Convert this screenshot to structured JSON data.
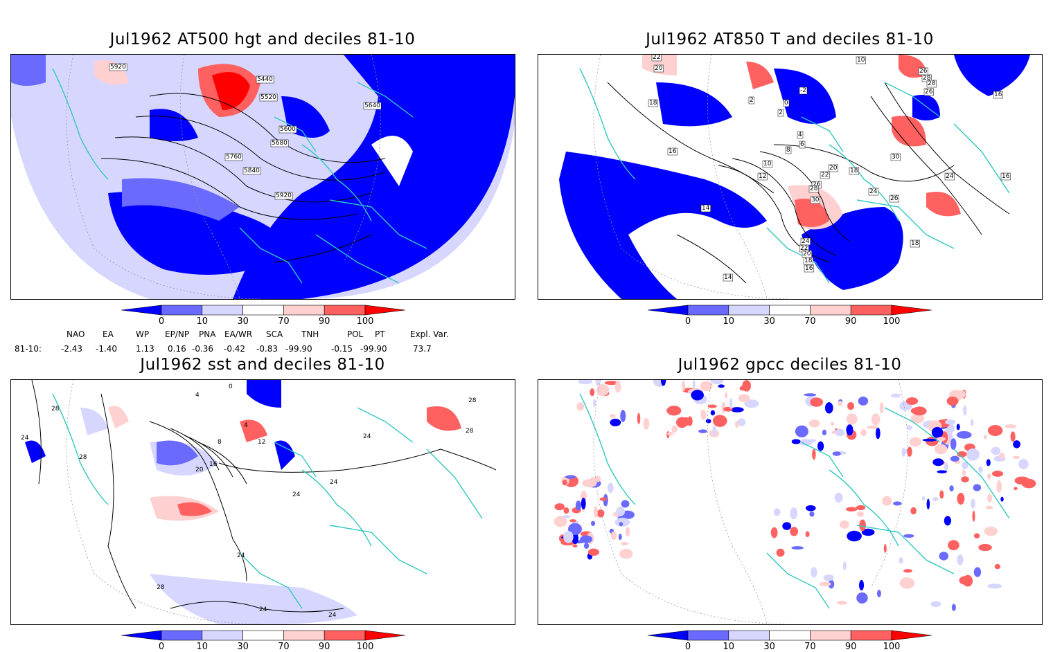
{
  "panels": [
    {
      "title": "Jul1962 AT500 hgt and deciles 81-10"
    },
    {
      "title": "Jul1962 AT850 T and deciles 81-10"
    },
    {
      "title": "Jul1962 sst and deciles 81-10"
    },
    {
      "title": "Jul1962 gpcc deciles 81-10"
    }
  ],
  "colorbar": {
    "ticks": [
      "0",
      "10",
      "30",
      "70",
      "90",
      "100"
    ],
    "colors": [
      "#0000ff",
      "#6a6aff",
      "#d6d6ff",
      "#ffffff",
      "#ffd0d0",
      "#ff6060",
      "#ff0000"
    ]
  },
  "teleconnections": {
    "headers": [
      "NAO",
      "EA",
      "WP",
      "EP/NP",
      "PNA",
      "EA/WR",
      "SCA",
      "TNH",
      "POL",
      "PT",
      "Expl. Var."
    ],
    "row_label": "81-10:",
    "values": [
      "-2.43",
      "-1.40",
      "1.13",
      "0.16",
      "-0.36",
      "-0.42",
      "-0.83",
      "-99.90",
      "-0.15",
      "-99.90",
      "73.7"
    ]
  },
  "contour_labels": {
    "hgt": [
      "5920",
      "5440",
      "5520",
      "5600",
      "5680",
      "5640",
      "5760",
      "5840",
      "5920"
    ],
    "t850": [
      "22",
      "20",
      "18",
      "16",
      "10",
      "12",
      "2",
      "0",
      "2",
      "4",
      "-2",
      "8",
      "6",
      "14",
      "14",
      "20",
      "22",
      "18",
      "24",
      "26",
      "28",
      "30",
      "26",
      "24",
      "22",
      "20",
      "18",
      "16",
      "26",
      "30",
      "28",
      "24",
      "16",
      "18",
      "26",
      "28",
      "30",
      "16",
      "10"
    ],
    "sst": [
      "28",
      "24",
      "28",
      "4",
      "8",
      "12",
      "16",
      "20",
      "24",
      "24",
      "24",
      "28",
      "24",
      "28",
      "24",
      "24",
      "28",
      "0",
      "4"
    ]
  }
}
